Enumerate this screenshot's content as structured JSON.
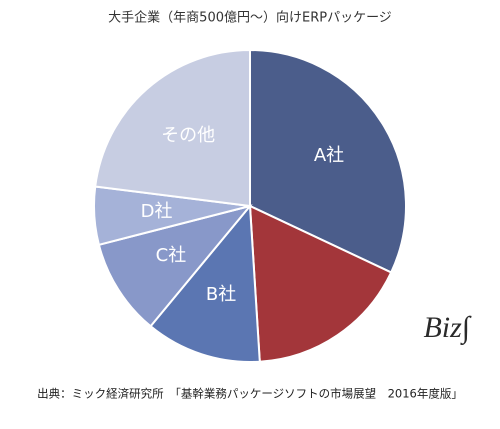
{
  "chart_data": {
    "type": "pie",
    "title": "大手企業（年商500億円～）向けERPパッケージ",
    "categories": [
      "A社",
      null,
      "B社",
      "C社",
      "D社",
      "その他"
    ],
    "values": [
      32,
      17,
      12,
      10,
      6,
      23
    ],
    "colors": [
      "#4b5d8b",
      "#a3363a",
      "#5b76b2",
      "#8898c9",
      "#a5b2d8",
      "#c7cde2"
    ],
    "source": "出典：ミック経済研究所　「基幹業務パッケージソフトの市場展望　2016年度版」",
    "logo": "Biz∫"
  }
}
